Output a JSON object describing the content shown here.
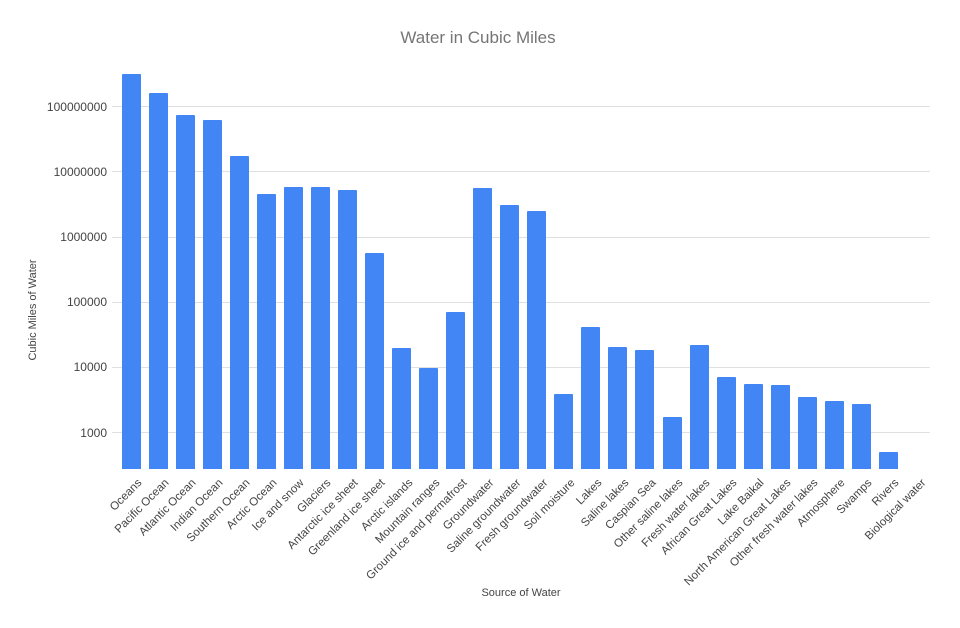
{
  "chart_data": {
    "type": "bar",
    "title": "Water in Cubic Miles",
    "xlabel": "Source of Water",
    "ylabel": "Cubic Miles of Water",
    "y_scale": "log",
    "y_axis_ticks": [
      "1000",
      "10000",
      "100000",
      "1000000",
      "10000000",
      "100000000"
    ],
    "ylim": [
      269,
      400000000
    ],
    "grid": true,
    "legend": "none",
    "bar_color": "#4285f4",
    "categories": [
      "Oceans",
      "Pacific Ocean",
      "Atlantic Ocean",
      "Indian Ocean",
      "Southern Ocean",
      "Arctic Ocean",
      "Ice and snow",
      "Glaciers",
      "Antarctic ice sheet",
      "Greenland ice sheet",
      "Arctic islands",
      "Mountain ranges",
      "Ground ice and permafrost",
      "Groundwater",
      "Saline groundwater",
      "Fresh groundwater",
      "Soil moisture",
      "Lakes",
      "Saline lakes",
      "Caspian Sea",
      "Other saline lakes",
      "Fresh water lakes",
      "African Great Lakes",
      "Lake Baikal",
      "North American Great Lakes",
      "Other fresh water lakes",
      "Atmosphere",
      "Swamps",
      "Rivers",
      "Biological water"
    ],
    "values": [
      321000000,
      160700000,
      74500000,
      63300000,
      17200000,
      4500000,
      5845000,
      5773000,
      5182000,
      561000,
      20000,
      9700,
      71970,
      5614000,
      3088000,
      2526000,
      3959,
      42320,
      20490,
      18761,
      1729,
      21830,
      7215,
      5666,
      5439,
      3510,
      3095,
      2752,
      509,
      269
    ]
  },
  "colors": {
    "bar": "#4285f4",
    "title_text": "#757575",
    "axis_text": "#444444",
    "gridline": "#e0e0e0",
    "background": "#ffffff"
  }
}
